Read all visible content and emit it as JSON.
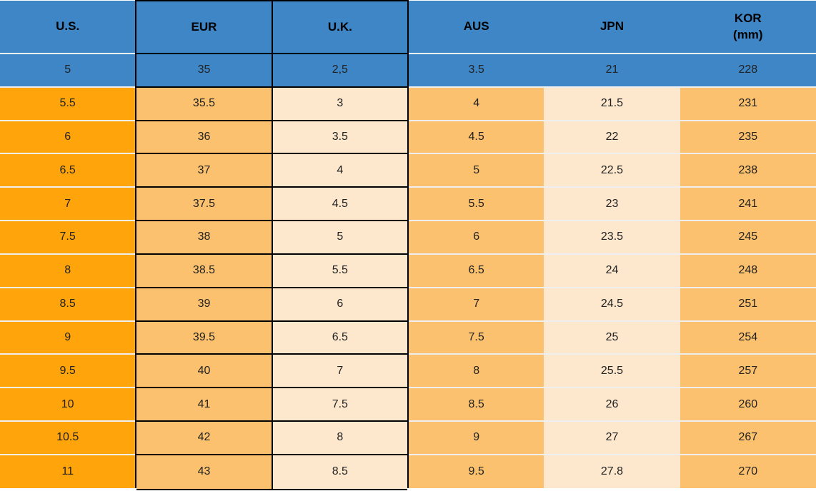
{
  "chart_data": {
    "type": "table",
    "description": "Shoe size conversion table",
    "columns": [
      {
        "key": "us",
        "label": "U.S."
      },
      {
        "key": "eur",
        "label": "EUR"
      },
      {
        "key": "uk",
        "label": "U.K."
      },
      {
        "key": "aus",
        "label": "AUS"
      },
      {
        "key": "jpn",
        "label": "JPN"
      },
      {
        "key": "kor",
        "label": "KOR",
        "sublabel": "(mm)"
      }
    ],
    "highlight_row_index": 0,
    "rows": [
      {
        "us": "5",
        "eur": "35",
        "uk": "2,5",
        "aus": "3.5",
        "jpn": "21",
        "kor": "228",
        "highlight": true
      },
      {
        "us": "5.5",
        "eur": "35.5",
        "uk": "3",
        "aus": "4",
        "jpn": "21.5",
        "kor": "231"
      },
      {
        "us": "6",
        "eur": "36",
        "uk": "3.5",
        "aus": "4.5",
        "jpn": "22",
        "kor": "235"
      },
      {
        "us": "6.5",
        "eur": "37",
        "uk": "4",
        "aus": "5",
        "jpn": "22.5",
        "kor": "238"
      },
      {
        "us": "7",
        "eur": "37.5",
        "uk": "4.5",
        "aus": "5.5",
        "jpn": "23",
        "kor": "241"
      },
      {
        "us": "7.5",
        "eur": "38",
        "uk": "5",
        "aus": "6",
        "jpn": "23.5",
        "kor": "245"
      },
      {
        "us": "8",
        "eur": "38.5",
        "uk": "5.5",
        "aus": "6.5",
        "jpn": "24",
        "kor": "248"
      },
      {
        "us": "8.5",
        "eur": "39",
        "uk": "6",
        "aus": "7",
        "jpn": "24.5",
        "kor": "251"
      },
      {
        "us": "9",
        "eur": "39.5",
        "uk": "6.5",
        "aus": "7.5",
        "jpn": "25",
        "kor": "254"
      },
      {
        "us": "9.5",
        "eur": "40",
        "uk": "7",
        "aus": "8",
        "jpn": "25.5",
        "kor": "257"
      },
      {
        "us": "10",
        "eur": "41",
        "uk": "7.5",
        "aus": "8.5",
        "jpn": "26",
        "kor": "260"
      },
      {
        "us": "10.5",
        "eur": "42",
        "uk": "8",
        "aus": "9",
        "jpn": "27",
        "kor": "267"
      },
      {
        "us": "11",
        "eur": "43",
        "uk": "8.5",
        "aus": "9.5",
        "jpn": "27.8",
        "kor": "270"
      }
    ]
  },
  "colors": {
    "header_blue": "#3E86C6",
    "highlight_blue": "#3E86C6",
    "orange_strong": "#FFA40B",
    "orange_light": "#FBC16E",
    "cream": "#FDE8CE",
    "cell_border": "#000000",
    "row_separator": "#EFEFEF",
    "text": "#222222"
  }
}
